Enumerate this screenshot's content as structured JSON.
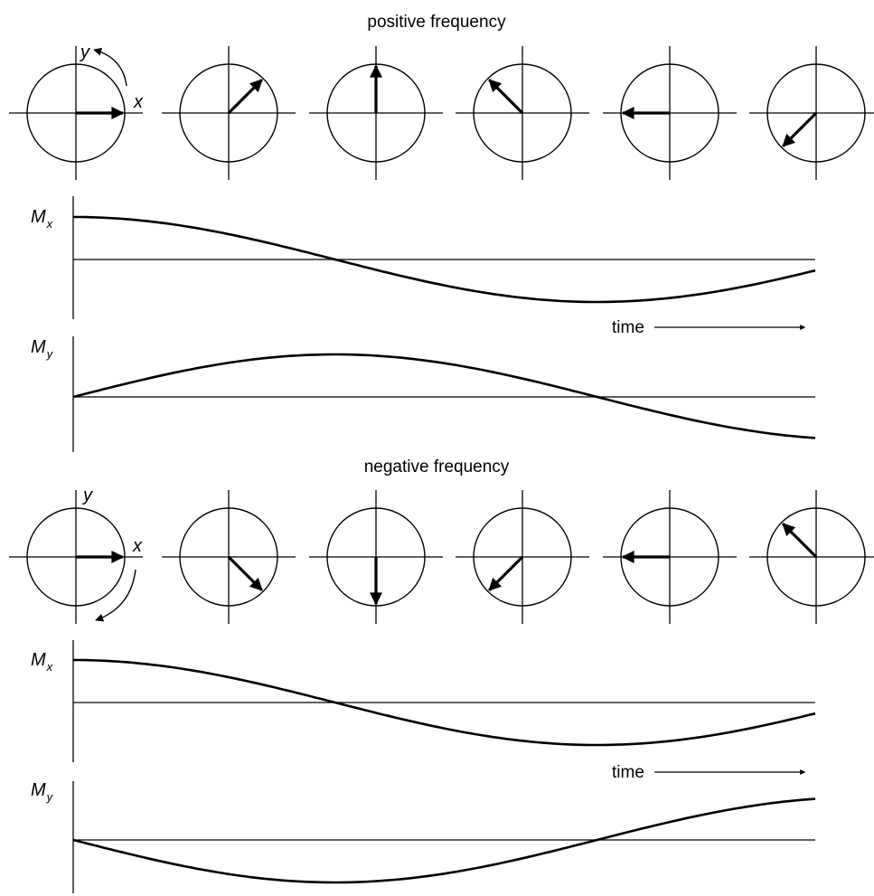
{
  "sections": [
    {
      "title": "positive frequency",
      "x_axis_label": "x",
      "y_axis_label": "y",
      "arrow_angles_deg": [
        0,
        45,
        90,
        135,
        180,
        225
      ],
      "Mx": {
        "symbol": "M",
        "subscript": "x"
      },
      "My": {
        "symbol": "M",
        "subscript": "y"
      },
      "time_label": "time"
    },
    {
      "title": "negative frequency",
      "x_axis_label": "x",
      "y_axis_label": "y",
      "arrow_angles_deg": [
        0,
        -45,
        -90,
        -135,
        -180,
        -225
      ],
      "Mx": {
        "symbol": "M",
        "subscript": "x"
      },
      "My": {
        "symbol": "M",
        "subscript": "y"
      },
      "time_label": "time"
    }
  ]
}
